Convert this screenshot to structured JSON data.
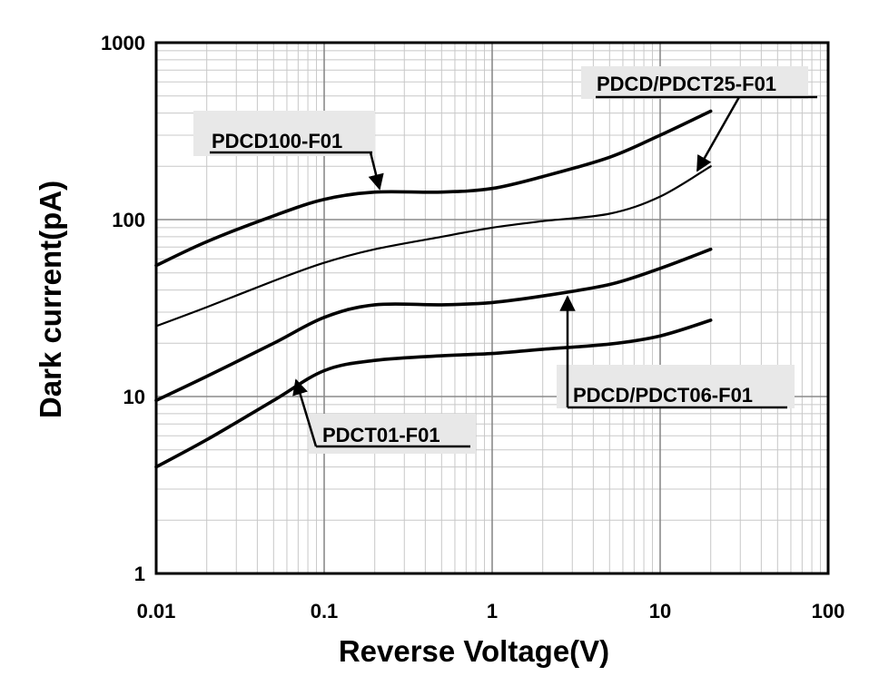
{
  "chart_data": {
    "type": "line",
    "title": "",
    "xlabel": "Reverse Voltage(V)",
    "ylabel": "Dark current(pA)",
    "xscale": "log",
    "yscale": "log",
    "xlim": [
      0.01,
      100
    ],
    "ylim": [
      1,
      1000
    ],
    "grid": true,
    "x_ticks": [
      0.01,
      0.1,
      1,
      10,
      100
    ],
    "x_tick_labels": [
      "0.01",
      "0.1",
      "1",
      "10",
      "100"
    ],
    "y_ticks": [
      1,
      10,
      100,
      1000
    ],
    "y_tick_labels": [
      "1",
      "10",
      "100",
      "1000"
    ],
    "series": [
      {
        "name": "PDCD100-F01",
        "weight": "bold",
        "x": [
          0.01,
          0.02,
          0.05,
          0.1,
          0.2,
          0.5,
          1,
          2,
          5,
          10,
          20
        ],
        "y": [
          55,
          75,
          105,
          130,
          143,
          143,
          150,
          175,
          225,
          300,
          410
        ]
      },
      {
        "name": "PDCD/PDCT25-F01",
        "weight": "thin",
        "x": [
          0.01,
          0.02,
          0.05,
          0.1,
          0.2,
          0.5,
          1,
          2,
          5,
          10,
          20
        ],
        "y": [
          25,
          32,
          45,
          57,
          68,
          80,
          90,
          98,
          108,
          135,
          200
        ]
      },
      {
        "name": "PDCD/PDCT06-F01",
        "weight": "bold",
        "x": [
          0.01,
          0.02,
          0.05,
          0.1,
          0.2,
          0.5,
          1,
          2,
          5,
          10,
          20
        ],
        "y": [
          9.5,
          13,
          20,
          28,
          33,
          33,
          34,
          37,
          43,
          53,
          68
        ]
      },
      {
        "name": "PDCT01-F01",
        "weight": "bold",
        "x": [
          0.01,
          0.02,
          0.05,
          0.1,
          0.2,
          0.5,
          1,
          2,
          5,
          10,
          20
        ],
        "y": [
          4,
          5.7,
          9.5,
          14,
          16,
          17,
          17.5,
          18.5,
          19.8,
          22,
          27
        ]
      }
    ],
    "annotations": [
      {
        "text": "PDCD100-F01",
        "points_to": [
          0.23,
          143
        ]
      },
      {
        "text": "PDCD/PDCT25-F01",
        "points_to": [
          12.5,
          155
        ]
      },
      {
        "text": "PDCD/PDCT06-F01",
        "points_to": [
          2.8,
          38
        ]
      },
      {
        "text": "PDCT01-F01",
        "points_to": [
          0.065,
          12.5
        ]
      }
    ]
  }
}
